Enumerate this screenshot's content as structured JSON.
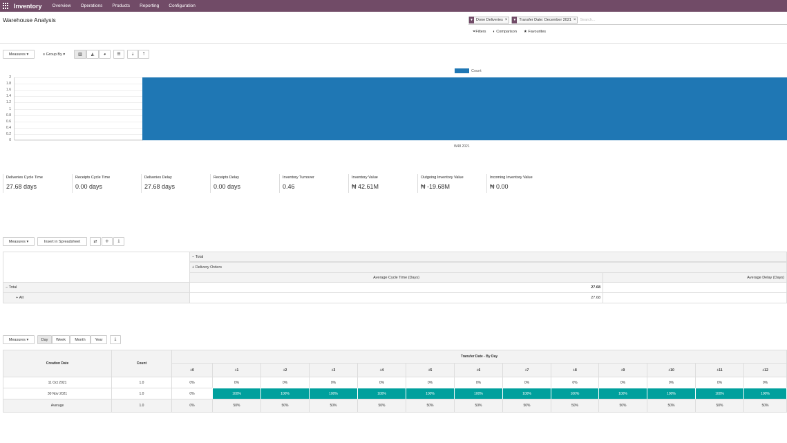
{
  "navbar": {
    "app": "Inventory",
    "items": [
      "Overview",
      "Operations",
      "Products",
      "Reporting",
      "Configuration"
    ]
  },
  "page": {
    "title": "Warehouse Analysis"
  },
  "search": {
    "facets": [
      "Done Deliveries",
      "Transfer Date: December 2021"
    ],
    "placeholder": "Search...",
    "options": {
      "filters": "Filters",
      "comparison": "Comparison",
      "favourites": "Favourites"
    }
  },
  "graph_toolbar": {
    "measures": "Measures",
    "group_by": "Group By"
  },
  "chart_data": {
    "type": "bar",
    "categories": [
      "W48 2021"
    ],
    "series": [
      {
        "name": "Count",
        "values": [
          2
        ]
      }
    ],
    "ylim": [
      0,
      2
    ],
    "yticks": [
      "0",
      "0.2",
      "0.4",
      "0.6",
      "0.8",
      "1",
      "1.2",
      "1.4",
      "1.6",
      "1.8",
      "2"
    ],
    "legend": "top-center"
  },
  "kpis": [
    {
      "label": "Deliveries Cycle Time",
      "value": "27.68 days"
    },
    {
      "label": "Receipts Cycle Time",
      "value": "0.00 days"
    },
    {
      "label": "Deliveries Delay",
      "value": "27.68 days"
    },
    {
      "label": "Receipts Delay",
      "value": "0.00 days"
    },
    {
      "label": "Inventory Turnover",
      "value": "0.46"
    },
    {
      "label": "Inventory Value",
      "value": "₦ 42.61M"
    },
    {
      "label": "Outgoing Inventory Value",
      "value": "₦ -19.68M"
    },
    {
      "label": "Incoming Inventory Value",
      "value": "₦ 0.00"
    }
  ],
  "pivot_toolbar": {
    "measures": "Measures",
    "insert": "Insert in Spreadsheet"
  },
  "pivot": {
    "col_total": "Total",
    "col_group": "Delivery Orders",
    "measure1": "Average Cycle Time (Days)",
    "measure2": "Average Delay (Days)",
    "row_total": "Total",
    "row_all": "All",
    "total_value": "27.68",
    "all_value": "27.68"
  },
  "cohort_toolbar": {
    "measures": "Measures",
    "day": "Day",
    "week": "Week",
    "month": "Month",
    "year": "Year"
  },
  "cohort": {
    "h_creation": "Creation Date",
    "h_count": "Count",
    "h_transfer": "Transfer Date - By Day",
    "offsets": [
      "+0",
      "+1",
      "+2",
      "+3",
      "+4",
      "+5",
      "+6",
      "+7",
      "+8",
      "+9",
      "+10",
      "+11",
      "+12"
    ],
    "rows": [
      {
        "date": "11 Oct 2021",
        "count": "1.0",
        "cells": [
          "0%",
          "0%",
          "0%",
          "0%",
          "0%",
          "0%",
          "0%",
          "0%",
          "0%",
          "0%",
          "0%",
          "0%",
          "0%"
        ]
      },
      {
        "date": "30 Nov 2021",
        "count": "1.0",
        "cells": [
          "0%",
          "100%",
          "100%",
          "100%",
          "100%",
          "100%",
          "100%",
          "100%",
          "100%",
          "100%",
          "100%",
          "100%",
          "100%"
        ]
      }
    ],
    "avg": {
      "label": "Average",
      "count": "1.0",
      "cells": [
        "0%",
        "50%",
        "50%",
        "50%",
        "50%",
        "50%",
        "50%",
        "50%",
        "50%",
        "50%",
        "50%",
        "50%",
        "50%"
      ]
    }
  },
  "colors": {
    "navbar": "#714b67",
    "bar": "#1f77b4",
    "cohort_fill": "#00a09d"
  }
}
